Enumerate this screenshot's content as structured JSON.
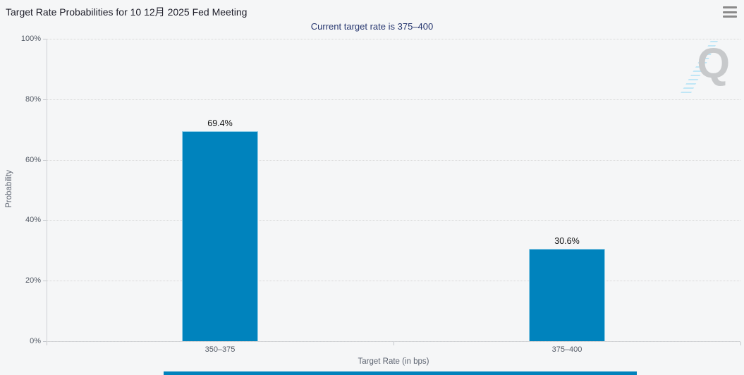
{
  "header": {
    "title": "Target Rate Probabilities for 10 12月 2025 Fed Meeting",
    "subtitle": "Current target rate is 375–400"
  },
  "watermark": {
    "letter": "Q"
  },
  "colors": {
    "bar": "#0083bd",
    "background": "#f5f6f7",
    "subtitle_text": "#26366f",
    "accent_bottom": "#0082bc"
  },
  "chart_data": {
    "type": "bar",
    "categories": [
      "350–375",
      "375–400"
    ],
    "values": [
      69.4,
      30.6
    ],
    "data_labels": [
      "69.4%",
      "30.6%"
    ],
    "title": "Target Rate Probabilities for 10 12月 2025 Fed Meeting",
    "subtitle": "Current target rate is 375–400",
    "xlabel": "Target Rate (in bps)",
    "ylabel": "Probability",
    "ylim": [
      0,
      100
    ],
    "ytick_values": [
      0,
      20,
      40,
      60,
      80,
      100
    ],
    "ytick_labels": [
      "0%",
      "20%",
      "40%",
      "60%",
      "80%",
      "100%"
    ],
    "grid": "horizontal dotted",
    "legend": "none"
  }
}
